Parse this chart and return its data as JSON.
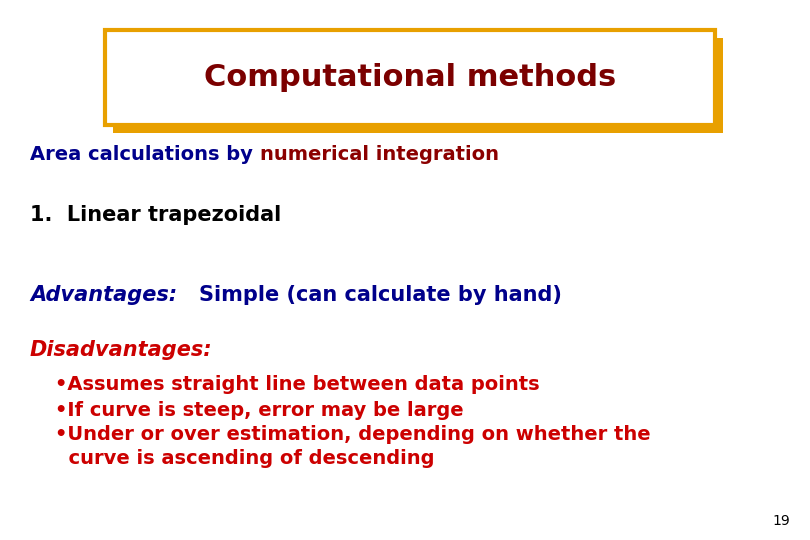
{
  "title": "Computational methods",
  "title_color": "#7B0000",
  "title_box_edge_color": "#E8A000",
  "background_color": "#FFFFFF",
  "subtitle_part1": "Area calculations by ",
  "subtitle_part2": "numerical integration",
  "subtitle_color_1": "#00008B",
  "subtitle_color_2": "#8B0000",
  "item1": "1.  Linear trapezoidal",
  "item1_color": "#000000",
  "advantages_label": "Advantages:   ",
  "advantages_text": "Simple (can calculate by hand)",
  "advantages_color": "#00008B",
  "disadvantages_label": "Disadvantages:",
  "disadvantages_label_color": "#CC0000",
  "bullet1": "•Assumes straight line between data points",
  "bullet2": "•If curve is steep, error may be large",
  "bullet3a": "•Under or over estimation, depending on whether the",
  "bullet3b": "  curve is ascending of descending",
  "bullets_color": "#CC0000",
  "page_number": "19",
  "page_number_color": "#000000",
  "title_fontsize": 22,
  "subtitle_fontsize": 14,
  "item1_fontsize": 15,
  "adv_fontsize": 15,
  "disadv_fontsize": 15,
  "bullet_fontsize": 14,
  "page_fontsize": 10
}
